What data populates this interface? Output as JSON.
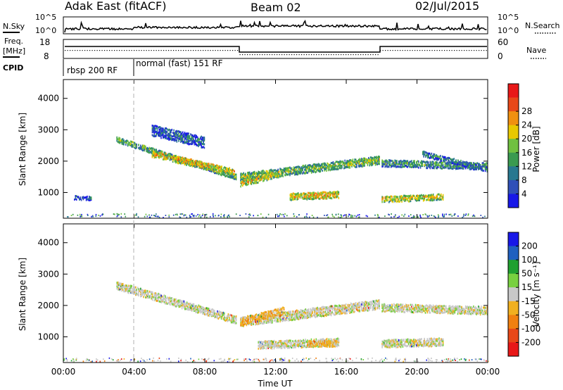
{
  "header": {
    "station": "Adak East (fitACF)",
    "beam": "Beam 02",
    "date": "02/Jul/2015"
  },
  "strips": {
    "nsky_label": "N.Sky",
    "nsearch_label": "N.Search",
    "noise_ticks": [
      "10^5",
      "10^0"
    ],
    "freq_label": "Freq.",
    "freq_unit": "[MHz]",
    "freq_ticks": [
      "18",
      "8"
    ],
    "nave_label": "Nave",
    "nave_ticks": [
      "60",
      "0"
    ],
    "cpid_label": "CPID",
    "cpid_segments": [
      "rbsp 200 RF",
      "normal (fast) 151 RF"
    ]
  },
  "colors": {
    "power": [
      "#1818e8",
      "#3050b8",
      "#287890",
      "#3a9a50",
      "#70c040",
      "#e8c800",
      "#f09010",
      "#e84818",
      "#e81818"
    ],
    "velocity": [
      "#1818e8",
      "#2060c0",
      "#20a030",
      "#78d040",
      "#c8c8c8",
      "#f0b020",
      "#f08010",
      "#e84818",
      "#e81818"
    ]
  },
  "chart_data": [
    {
      "type": "heatmap",
      "ylabel": "Slant Range [km]",
      "xlabel": "Time UT",
      "x_ticks": [
        "00:00",
        "04:00",
        "08:00",
        "12:00",
        "16:00",
        "20:00",
        "00:00"
      ],
      "y_ticks": [
        1000,
        2000,
        3000,
        4000
      ],
      "xlim_hours": [
        0,
        24
      ],
      "ylim_km": [
        180,
        4600
      ],
      "colorbar": {
        "label": "Power [dB]",
        "ticks": [
          4,
          8,
          12,
          16,
          20,
          24,
          28
        ]
      },
      "regions": [
        {
          "t0": 3.0,
          "t1": 9.8,
          "r_start": 2700,
          "r_end": 1500,
          "width": 170,
          "level": 0.45
        },
        {
          "t0": 5.0,
          "t1": 9.7,
          "r_start": 2250,
          "r_end": 1650,
          "width": 220,
          "level": 0.7
        },
        {
          "t0": 10.0,
          "t1": 17.9,
          "r_start": 1500,
          "r_end": 2050,
          "width": 260,
          "level": 0.5
        },
        {
          "t0": 10.0,
          "t1": 12.2,
          "r_start": 1300,
          "r_end": 1600,
          "width": 200,
          "level": 0.65
        },
        {
          "t0": 12.8,
          "t1": 15.6,
          "r_start": 880,
          "r_end": 950,
          "width": 220,
          "level": 0.7
        },
        {
          "t0": 18.0,
          "t1": 21.5,
          "r_start": 800,
          "r_end": 880,
          "width": 200,
          "level": 0.65
        },
        {
          "t0": 18.0,
          "t1": 24.0,
          "r_start": 1950,
          "r_end": 1850,
          "width": 220,
          "level": 0.4
        },
        {
          "t0": 20.3,
          "t1": 24.0,
          "r_start": 2250,
          "r_end": 1750,
          "width": 170,
          "level": 0.3
        },
        {
          "t0": 5.0,
          "t1": 8.0,
          "r_start": 3000,
          "r_end": 2600,
          "width": 350,
          "level": 0.25
        },
        {
          "t0": 0.6,
          "t1": 1.6,
          "r_start": 850,
          "r_end": 820,
          "width": 120,
          "level": 0.2
        }
      ]
    },
    {
      "type": "heatmap",
      "ylabel": "Slant Range [km]",
      "xlabel": "Time UT",
      "x_ticks": [
        "00:00",
        "04:00",
        "08:00",
        "12:00",
        "16:00",
        "20:00",
        "00:00"
      ],
      "y_ticks": [
        1000,
        2000,
        3000,
        4000
      ],
      "xlim_hours": [
        0,
        24
      ],
      "ylim_km": [
        180,
        4600
      ],
      "colorbar": {
        "label": "Velocity [m s⁻¹]",
        "ticks": [
          200,
          100,
          50,
          15,
          -15,
          -50,
          -100,
          -200
        ]
      },
      "regions": [
        {
          "t0": 3.0,
          "t1": 9.8,
          "r_start": 2650,
          "r_end": 1550,
          "width": 250,
          "level": 0.5
        },
        {
          "t0": 10.0,
          "t1": 17.9,
          "r_start": 1500,
          "r_end": 2050,
          "width": 300,
          "level": 0.5
        },
        {
          "t0": 10.0,
          "t1": 12.5,
          "r_start": 1500,
          "r_end": 1850,
          "width": 250,
          "level": 0.62
        },
        {
          "t0": 11.0,
          "t1": 15.6,
          "r_start": 750,
          "r_end": 850,
          "width": 250,
          "level": 0.5
        },
        {
          "t0": 13.8,
          "t1": 15.5,
          "r_start": 800,
          "r_end": 800,
          "width": 200,
          "level": 0.62
        },
        {
          "t0": 18.0,
          "t1": 21.5,
          "r_start": 800,
          "r_end": 850,
          "width": 250,
          "level": 0.5
        },
        {
          "t0": 18.0,
          "t1": 24.0,
          "r_start": 1950,
          "r_end": 1850,
          "width": 250,
          "level": 0.5
        }
      ]
    }
  ]
}
